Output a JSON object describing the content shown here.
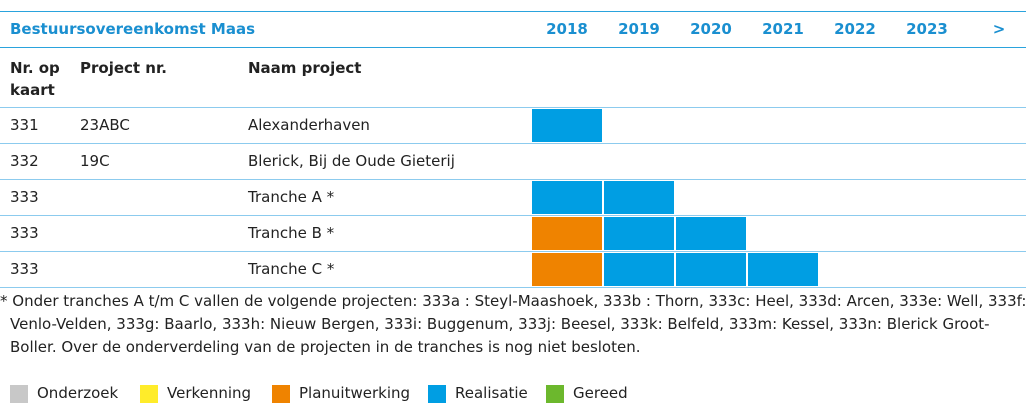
{
  "header": {
    "title": "Bestuursovereenkomst Maas",
    "years": [
      "2018",
      "2019",
      "2020",
      "2021",
      "2022",
      "2023",
      ">"
    ]
  },
  "columns": [
    "Nr. op\nkaart",
    "Project nr.",
    "Naam project"
  ],
  "rows": [
    {
      "nr": "331",
      "project": "23ABC",
      "name": "Alexanderhaven",
      "phases": [
        3,
        null,
        null,
        null,
        null,
        null,
        null
      ]
    },
    {
      "nr": "332",
      "project": "19C",
      "name": "Blerick, Bij de Oude Gieterij",
      "phases": [
        null,
        null,
        null,
        null,
        null,
        null,
        null
      ]
    },
    {
      "nr": "333",
      "project": "",
      "name": "Tranche A *",
      "phases": [
        3,
        3,
        null,
        null,
        null,
        null,
        null
      ]
    },
    {
      "nr": "333",
      "project": "",
      "name": "Tranche B *",
      "phases": [
        2,
        3,
        3,
        null,
        null,
        null,
        null
      ]
    },
    {
      "nr": "333",
      "project": "",
      "name": "Tranche C *",
      "phases": [
        2,
        3,
        3,
        3,
        null,
        null,
        null
      ]
    }
  ],
  "footnote": [
    "* Onder tranches A t/m C vallen de volgende projecten: 333a : Steyl-Maashoek, 333b : Thorn, 333c: Heel, 333d: Arcen, 333e: Well, 333f:",
    "Venlo-Velden, 333g: Baarlo, 333h: Nieuw Bergen, 333i: Buggenum, 333j: Beesel, 333k: Belfeld, 333m: Kessel, 333n: Blerick Groot-",
    "Boller. Over de onderverdeling van de projecten in de tranches is nog niet besloten."
  ],
  "legend": [
    {
      "name": "Onderzoek",
      "color": "#c8c8c8"
    },
    {
      "name": "Verkenning",
      "color": "#ffec2a"
    },
    {
      "name": "Planuitwerking",
      "color": "#ef8300"
    },
    {
      "name": "Realisatie",
      "color": "#009ee3"
    },
    {
      "name": "Gereed",
      "color": "#6cb82d"
    }
  ]
}
